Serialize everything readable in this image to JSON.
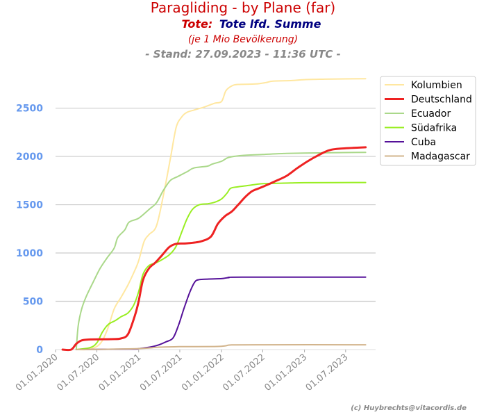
{
  "header": {
    "title": "Paragliding - by Plane (far)",
    "subtitle_prefix": "Tote:",
    "subtitle_main": "Tote lfd. Summe",
    "note": "(je 1 Mio Bevölkerung)",
    "stand": "- Stand: 27.09.2023 - 11:36 UTC -"
  },
  "footer": {
    "credit": "(c) Huybrechts@vitacordis.de"
  },
  "colors": {
    "title": "#cc0000",
    "subtitle_main": "#000080",
    "ytick": "#6699ee",
    "grid": "#cccccc"
  },
  "chart_data": {
    "type": "line",
    "title": "Paragliding - by Plane (far)",
    "xlabel": "",
    "ylabel": "",
    "x_type": "date",
    "xlim": [
      "2020-01-01",
      "2023-11-10"
    ],
    "ylim": [
      0,
      2900
    ],
    "yticks": [
      0,
      500,
      1000,
      1500,
      2000,
      2500
    ],
    "xticks": [
      "01.01.2020",
      "01.07.2020",
      "01.01.2021",
      "01.07.2021",
      "01.01.2022",
      "01.07.2022",
      "01.01.2023",
      "01.07.2023"
    ],
    "xtick_dates": [
      "2020-01-01",
      "2020-07-01",
      "2021-01-01",
      "2021-07-01",
      "2022-01-01",
      "2022-07-01",
      "2023-01-01",
      "2023-07-01"
    ],
    "grid": "horizontal",
    "legend_position": "top-right",
    "series": [
      {
        "name": "Kolumbien",
        "color": "#ffe7a0",
        "width": 2,
        "points": [
          [
            "2020-04-01",
            0
          ],
          [
            "2020-06-01",
            5
          ],
          [
            "2020-07-15",
            60
          ],
          [
            "2020-08-15",
            200
          ],
          [
            "2020-09-15",
            420
          ],
          [
            "2020-10-15",
            540
          ],
          [
            "2020-11-15",
            670
          ],
          [
            "2020-12-15",
            820
          ],
          [
            "2021-01-01",
            920
          ],
          [
            "2021-01-25",
            1120
          ],
          [
            "2021-02-15",
            1190
          ],
          [
            "2021-03-20",
            1280
          ],
          [
            "2021-04-20",
            1600
          ],
          [
            "2021-05-20",
            1970
          ],
          [
            "2021-06-15",
            2300
          ],
          [
            "2021-07-10",
            2410
          ],
          [
            "2021-08-01",
            2455
          ],
          [
            "2021-09-01",
            2480
          ],
          [
            "2021-10-15",
            2510
          ],
          [
            "2021-12-01",
            2550
          ],
          [
            "2022-01-01",
            2570
          ],
          [
            "2022-01-20",
            2680
          ],
          [
            "2022-02-15",
            2730
          ],
          [
            "2022-03-15",
            2745
          ],
          [
            "2022-06-01",
            2750
          ],
          [
            "2022-07-15",
            2765
          ],
          [
            "2022-08-15",
            2780
          ],
          [
            "2022-11-01",
            2785
          ],
          [
            "2023-01-01",
            2795
          ],
          [
            "2023-04-01",
            2800
          ],
          [
            "2023-07-01",
            2803
          ],
          [
            "2023-09-27",
            2805
          ]
        ]
      },
      {
        "name": "Deutschland",
        "color": "#ee2222",
        "width": 3,
        "points": [
          [
            "2020-02-01",
            0
          ],
          [
            "2020-03-10",
            0
          ],
          [
            "2020-04-01",
            60
          ],
          [
            "2020-04-25",
            95
          ],
          [
            "2020-06-01",
            105
          ],
          [
            "2020-09-01",
            108
          ],
          [
            "2020-10-15",
            115
          ],
          [
            "2020-11-15",
            160
          ],
          [
            "2020-12-15",
            350
          ],
          [
            "2021-01-01",
            500
          ],
          [
            "2021-01-20",
            720
          ],
          [
            "2021-02-15",
            840
          ],
          [
            "2021-03-15",
            900
          ],
          [
            "2021-04-15",
            980
          ],
          [
            "2021-05-15",
            1060
          ],
          [
            "2021-06-15",
            1095
          ],
          [
            "2021-08-01",
            1100
          ],
          [
            "2021-10-01",
            1120
          ],
          [
            "2021-11-15",
            1170
          ],
          [
            "2021-12-15",
            1300
          ],
          [
            "2022-01-15",
            1380
          ],
          [
            "2022-02-15",
            1430
          ],
          [
            "2022-03-15",
            1500
          ],
          [
            "2022-04-15",
            1580
          ],
          [
            "2022-05-15",
            1640
          ],
          [
            "2022-06-15",
            1670
          ],
          [
            "2022-07-15",
            1700
          ],
          [
            "2022-09-01",
            1750
          ],
          [
            "2022-10-15",
            1800
          ],
          [
            "2022-12-01",
            1880
          ],
          [
            "2023-01-15",
            1950
          ],
          [
            "2023-03-01",
            2010
          ],
          [
            "2023-04-15",
            2060
          ],
          [
            "2023-06-01",
            2080
          ],
          [
            "2023-09-27",
            2095
          ]
        ]
      },
      {
        "name": "Ecuador",
        "color": "#aad88a",
        "width": 2,
        "points": [
          [
            "2020-04-01",
            0
          ],
          [
            "2020-04-10",
            250
          ],
          [
            "2020-04-25",
            420
          ],
          [
            "2020-05-15",
            550
          ],
          [
            "2020-06-15",
            700
          ],
          [
            "2020-07-15",
            840
          ],
          [
            "2020-08-15",
            950
          ],
          [
            "2020-09-15",
            1050
          ],
          [
            "2020-10-01",
            1160
          ],
          [
            "2020-11-01",
            1240
          ],
          [
            "2020-11-20",
            1320
          ],
          [
            "2021-01-01",
            1360
          ],
          [
            "2021-02-15",
            1450
          ],
          [
            "2021-03-20",
            1520
          ],
          [
            "2021-04-20",
            1650
          ],
          [
            "2021-05-20",
            1750
          ],
          [
            "2021-06-20",
            1790
          ],
          [
            "2021-08-01",
            1840
          ],
          [
            "2021-09-01",
            1880
          ],
          [
            "2021-11-01",
            1900
          ],
          [
            "2021-11-20",
            1920
          ],
          [
            "2022-01-01",
            1950
          ],
          [
            "2022-02-01",
            1990
          ],
          [
            "2022-04-01",
            2010
          ],
          [
            "2022-07-01",
            2020
          ],
          [
            "2022-10-01",
            2030
          ],
          [
            "2023-01-01",
            2035
          ],
          [
            "2023-07-01",
            2040
          ],
          [
            "2023-09-27",
            2042
          ]
        ]
      },
      {
        "name": "Südafrika",
        "color": "#99ee22",
        "width": 2,
        "points": [
          [
            "2020-04-01",
            0
          ],
          [
            "2020-06-01",
            20
          ],
          [
            "2020-07-01",
            70
          ],
          [
            "2020-07-25",
            180
          ],
          [
            "2020-08-20",
            260
          ],
          [
            "2020-09-20",
            300
          ],
          [
            "2020-10-15",
            340
          ],
          [
            "2020-11-15",
            380
          ],
          [
            "2020-12-10",
            460
          ],
          [
            "2021-01-01",
            600
          ],
          [
            "2021-01-20",
            780
          ],
          [
            "2021-02-15",
            870
          ],
          [
            "2021-03-20",
            900
          ],
          [
            "2021-04-20",
            940
          ],
          [
            "2021-05-20",
            990
          ],
          [
            "2021-06-15",
            1070
          ],
          [
            "2021-07-10",
            1220
          ],
          [
            "2021-08-01",
            1350
          ],
          [
            "2021-08-25",
            1450
          ],
          [
            "2021-09-25",
            1500
          ],
          [
            "2021-11-01",
            1510
          ],
          [
            "2021-12-01",
            1525
          ],
          [
            "2022-01-01",
            1560
          ],
          [
            "2022-01-25",
            1620
          ],
          [
            "2022-02-10",
            1670
          ],
          [
            "2022-03-15",
            1685
          ],
          [
            "2022-05-01",
            1700
          ],
          [
            "2022-06-15",
            1715
          ],
          [
            "2022-08-01",
            1720
          ],
          [
            "2022-11-01",
            1725
          ],
          [
            "2023-01-01",
            1728
          ],
          [
            "2023-09-27",
            1730
          ]
        ]
      },
      {
        "name": "Cuba",
        "color": "#551199",
        "width": 2,
        "points": [
          [
            "2020-04-01",
            0
          ],
          [
            "2020-12-01",
            5
          ],
          [
            "2021-01-01",
            10
          ],
          [
            "2021-03-01",
            30
          ],
          [
            "2021-04-01",
            50
          ],
          [
            "2021-05-01",
            80
          ],
          [
            "2021-06-01",
            120
          ],
          [
            "2021-06-25",
            250
          ],
          [
            "2021-07-20",
            430
          ],
          [
            "2021-08-15",
            600
          ],
          [
            "2021-09-05",
            700
          ],
          [
            "2021-09-25",
            725
          ],
          [
            "2021-11-01",
            730
          ],
          [
            "2022-01-01",
            735
          ],
          [
            "2022-02-01",
            745
          ],
          [
            "2022-04-01",
            750
          ],
          [
            "2023-09-27",
            750
          ]
        ]
      },
      {
        "name": "Madagascar",
        "color": "#d2b48c",
        "width": 2,
        "points": [
          [
            "2020-04-01",
            0
          ],
          [
            "2020-07-01",
            2
          ],
          [
            "2021-01-01",
            10
          ],
          [
            "2021-04-01",
            25
          ],
          [
            "2021-07-01",
            30
          ],
          [
            "2021-12-01",
            32
          ],
          [
            "2022-01-15",
            38
          ],
          [
            "2022-02-15",
            48
          ],
          [
            "2022-06-01",
            50
          ],
          [
            "2023-09-27",
            50
          ]
        ]
      }
    ]
  }
}
